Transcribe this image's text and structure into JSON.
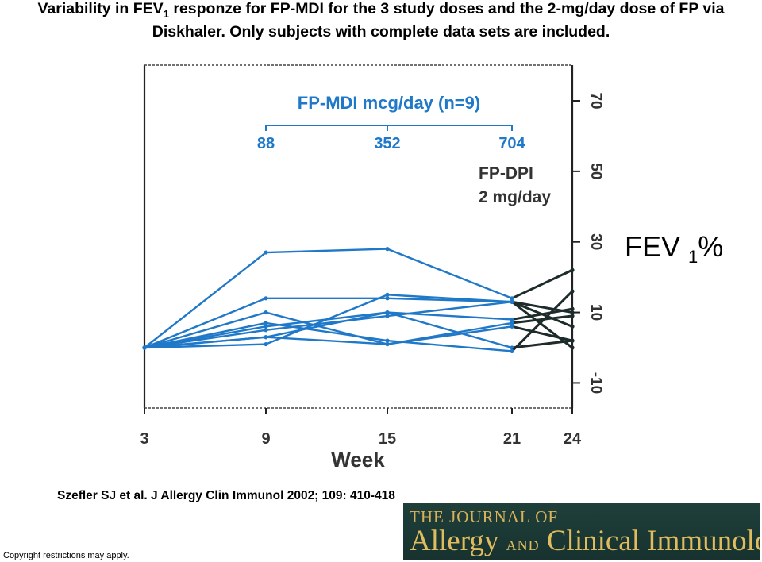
{
  "title": {
    "part1": "Variability in FEV",
    "sub": "1",
    "part2": " responze for FP-MDI for the 3 study doses and the 2-mg/day dose of FP via",
    "line2": "Diskhaler. Only subjects with complete data sets are included."
  },
  "chart_data": {
    "type": "line",
    "x": [
      3,
      9,
      15,
      21,
      24
    ],
    "xlabel": "Week",
    "ylim": [
      -15,
      75
    ],
    "y_ticks": [
      -10,
      10,
      30,
      50,
      70
    ],
    "y_ticks_rotated": true,
    "grid": false,
    "annotations": {
      "mdi_header": "FP-MDI mcg/day (n=9)",
      "mdi_doses": [
        "88",
        "352",
        "704"
      ],
      "dpi_line1": "FP-DPI",
      "dpi_line2": "2 mg/day"
    },
    "colors": {
      "mdi": "#1f78c8",
      "dpi": "#1d2b2b"
    },
    "series": [
      {
        "values": [
          0,
          27,
          28,
          14,
          22
        ]
      },
      {
        "values": [
          0,
          14,
          14,
          13,
          10
        ]
      },
      {
        "values": [
          0,
          10,
          1,
          6,
          2
        ]
      },
      {
        "values": [
          0,
          6,
          10,
          8,
          11
        ]
      },
      {
        "values": [
          0,
          5,
          9,
          13,
          6
        ]
      },
      {
        "values": [
          0,
          3,
          10,
          0,
          2
        ]
      },
      {
        "values": [
          0,
          3,
          1,
          7,
          9
        ]
      },
      {
        "values": [
          0,
          7,
          2,
          -1,
          16
        ]
      },
      {
        "values": [
          0,
          1,
          15,
          13,
          0
        ]
      }
    ]
  },
  "ylabel_text": {
    "main": "FEV",
    "sub": "1",
    "suffix": "%"
  },
  "citation": "Szefler SJ et al. J Allergy Clin Immunol 2002; 109: 410-418",
  "copyright": "Copyright restrictions may apply.",
  "journal_logo": {
    "top": "THE JOURNAL OF",
    "allergy": "Allergy",
    "and": "AND",
    "clinical": "Clinical Immunology"
  }
}
